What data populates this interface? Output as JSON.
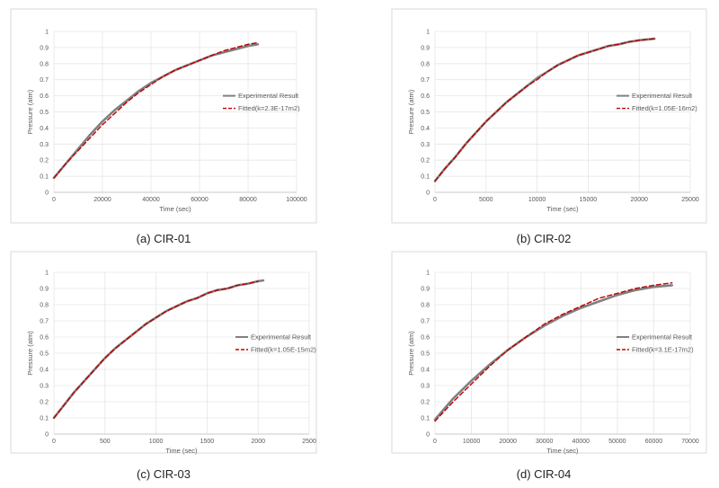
{
  "chart_data": [
    {
      "type": "line",
      "caption": "(a) CIR-01",
      "xlabel": "Time (sec)",
      "ylabel": "Pressure (atm)",
      "xlim": [
        0,
        100000
      ],
      "ylim": [
        0,
        1
      ],
      "xticks": [
        "0",
        "20000",
        "40000",
        "60000",
        "80000",
        "100000"
      ],
      "yticks": [
        "0",
        "0.1",
        "0.2",
        "0.3",
        "0.4",
        "0.5",
        "0.6",
        "0.7",
        "0.8",
        "0.9",
        "1"
      ],
      "legend_position": "right",
      "series": [
        {
          "name": "Experimental Result",
          "color": "#808080",
          "style": "solid",
          "x": [
            0,
            5000,
            10000,
            15000,
            20000,
            25000,
            30000,
            35000,
            40000,
            45000,
            50000,
            55000,
            60000,
            65000,
            70000,
            75000,
            80000,
            84000
          ],
          "y": [
            0.09,
            0.18,
            0.27,
            0.36,
            0.44,
            0.51,
            0.57,
            0.63,
            0.68,
            0.72,
            0.76,
            0.79,
            0.82,
            0.85,
            0.87,
            0.89,
            0.91,
            0.92
          ]
        },
        {
          "name": "Fitted(k=2.3E-17m2)",
          "color": "#c00000",
          "style": "dashed",
          "x": [
            0,
            5000,
            10000,
            15000,
            20000,
            25000,
            30000,
            35000,
            40000,
            45000,
            50000,
            55000,
            60000,
            65000,
            70000,
            75000,
            80000,
            84000
          ],
          "y": [
            0.09,
            0.18,
            0.26,
            0.34,
            0.42,
            0.49,
            0.56,
            0.62,
            0.67,
            0.72,
            0.76,
            0.79,
            0.82,
            0.85,
            0.88,
            0.9,
            0.92,
            0.93
          ]
        }
      ]
    },
    {
      "type": "line",
      "caption": "(b) CIR-02",
      "xlabel": "Time (sec)",
      "ylabel": "Pressure (atm)",
      "xlim": [
        0,
        25000
      ],
      "ylim": [
        0,
        1
      ],
      "xticks": [
        "0",
        "5000",
        "10000",
        "15000",
        "20000",
        "25000"
      ],
      "yticks": [
        "0",
        "0.1",
        "0.2",
        "0.3",
        "0.4",
        "0.5",
        "0.6",
        "0.7",
        "0.8",
        "0.9",
        "1"
      ],
      "legend_position": "right",
      "series": [
        {
          "name": "Experimental Result",
          "color": "#808080",
          "style": "solid",
          "x": [
            0,
            1000,
            2000,
            3000,
            4000,
            5000,
            6000,
            7000,
            8000,
            9000,
            10000,
            11000,
            12000,
            13000,
            14000,
            15000,
            16000,
            17000,
            18000,
            19000,
            20000,
            21500
          ],
          "y": [
            0.07,
            0.15,
            0.22,
            0.3,
            0.37,
            0.44,
            0.5,
            0.56,
            0.61,
            0.66,
            0.71,
            0.75,
            0.79,
            0.82,
            0.85,
            0.87,
            0.89,
            0.91,
            0.92,
            0.935,
            0.945,
            0.955
          ]
        },
        {
          "name": "Fitted(k=1.05E-16m2)",
          "color": "#c00000",
          "style": "dashed",
          "x": [
            0,
            1000,
            2000,
            3000,
            4000,
            5000,
            6000,
            7000,
            8000,
            9000,
            10000,
            11000,
            12000,
            13000,
            14000,
            15000,
            16000,
            17000,
            18000,
            19000,
            20000,
            21500
          ],
          "y": [
            0.07,
            0.15,
            0.22,
            0.3,
            0.37,
            0.44,
            0.5,
            0.56,
            0.61,
            0.66,
            0.7,
            0.75,
            0.79,
            0.82,
            0.85,
            0.87,
            0.89,
            0.91,
            0.92,
            0.935,
            0.945,
            0.955
          ]
        }
      ]
    },
    {
      "type": "line",
      "caption": "(c) CIR-03",
      "xlabel": "Time (sec)",
      "ylabel": "Pressure (atm)",
      "xlim": [
        0,
        2500
      ],
      "ylim": [
        0,
        1
      ],
      "xticks": [
        "0",
        "500",
        "1000",
        "1500",
        "2000",
        "2500"
      ],
      "yticks": [
        "0",
        "0.1",
        "0.2",
        "0.3",
        "0.4",
        "0.5",
        "0.6",
        "0.7",
        "0.8",
        "0.9",
        "1"
      ],
      "legend_position": "right",
      "series": [
        {
          "name": "Experimental Result",
          "color": "#808080",
          "style": "solid",
          "x": [
            0,
            100,
            200,
            300,
            400,
            500,
            600,
            700,
            800,
            900,
            1000,
            1100,
            1200,
            1300,
            1400,
            1500,
            1600,
            1700,
            1800,
            1900,
            2000,
            2050
          ],
          "y": [
            0.1,
            0.18,
            0.26,
            0.33,
            0.4,
            0.47,
            0.53,
            0.58,
            0.63,
            0.68,
            0.72,
            0.76,
            0.79,
            0.82,
            0.84,
            0.87,
            0.89,
            0.9,
            0.92,
            0.93,
            0.945,
            0.95
          ]
        },
        {
          "name": "Fitted(k=1.05E-15m2)",
          "color": "#c00000",
          "style": "dashed",
          "x": [
            0,
            100,
            200,
            300,
            400,
            500,
            600,
            700,
            800,
            900,
            1000,
            1100,
            1200,
            1300,
            1400,
            1500,
            1600,
            1700,
            1800,
            1900,
            2000
          ],
          "y": [
            0.1,
            0.18,
            0.26,
            0.33,
            0.4,
            0.47,
            0.53,
            0.58,
            0.63,
            0.68,
            0.72,
            0.76,
            0.79,
            0.82,
            0.84,
            0.87,
            0.89,
            0.9,
            0.92,
            0.93,
            0.945
          ]
        }
      ]
    },
    {
      "type": "line",
      "caption": "(d) CIR-04",
      "xlabel": "Time (sec)",
      "ylabel": "Pressure (atm)",
      "xlim": [
        0,
        70000
      ],
      "ylim": [
        0,
        1
      ],
      "xticks": [
        "0",
        "10000",
        "20000",
        "30000",
        "40000",
        "50000",
        "60000",
        "70000"
      ],
      "yticks": [
        "0",
        "0.1",
        "0.2",
        "0.3",
        "0.4",
        "0.5",
        "0.6",
        "0.7",
        "0.8",
        "0.9",
        "1"
      ],
      "legend_position": "right",
      "series": [
        {
          "name": "Experimental Result",
          "color": "#808080",
          "style": "solid",
          "x": [
            0,
            5000,
            10000,
            15000,
            20000,
            25000,
            30000,
            35000,
            40000,
            45000,
            50000,
            55000,
            60000,
            65000
          ],
          "y": [
            0.09,
            0.22,
            0.33,
            0.43,
            0.52,
            0.6,
            0.67,
            0.73,
            0.78,
            0.82,
            0.86,
            0.89,
            0.91,
            0.92
          ]
        },
        {
          "name": "Fitted(k=3.1E-17m2)",
          "color": "#c00000",
          "style": "dashed",
          "x": [
            0,
            5000,
            10000,
            15000,
            20000,
            25000,
            30000,
            35000,
            40000,
            45000,
            50000,
            55000,
            60000,
            65000
          ],
          "y": [
            0.08,
            0.2,
            0.31,
            0.42,
            0.52,
            0.6,
            0.68,
            0.74,
            0.79,
            0.84,
            0.87,
            0.9,
            0.92,
            0.935
          ]
        }
      ]
    }
  ]
}
